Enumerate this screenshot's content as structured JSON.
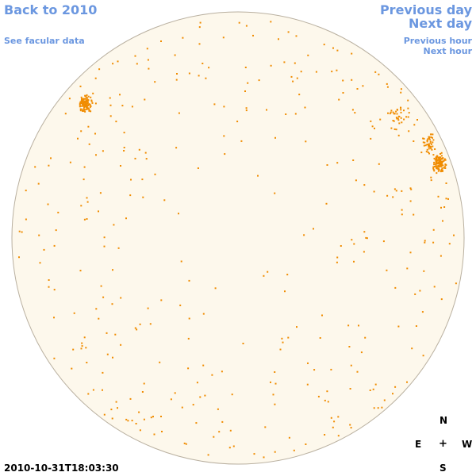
{
  "nav": {
    "back_label": "Back to 2010",
    "facular_label": "See facular data",
    "prev_day_label": "Previous day",
    "next_day_label": "Next day",
    "prev_hour_label": "Previous hour",
    "next_hour_label": "Next hour"
  },
  "compass": {
    "north": "N",
    "east": "E",
    "center": "+",
    "west": "W",
    "south": "S"
  },
  "timestamp": "2010-10-31T18:03:30",
  "colors": {
    "disk_fill": "#fdf8ec",
    "disk_stroke": "#b9b0a0",
    "facula": "#f08c00",
    "link": "#6b97e0"
  }
}
